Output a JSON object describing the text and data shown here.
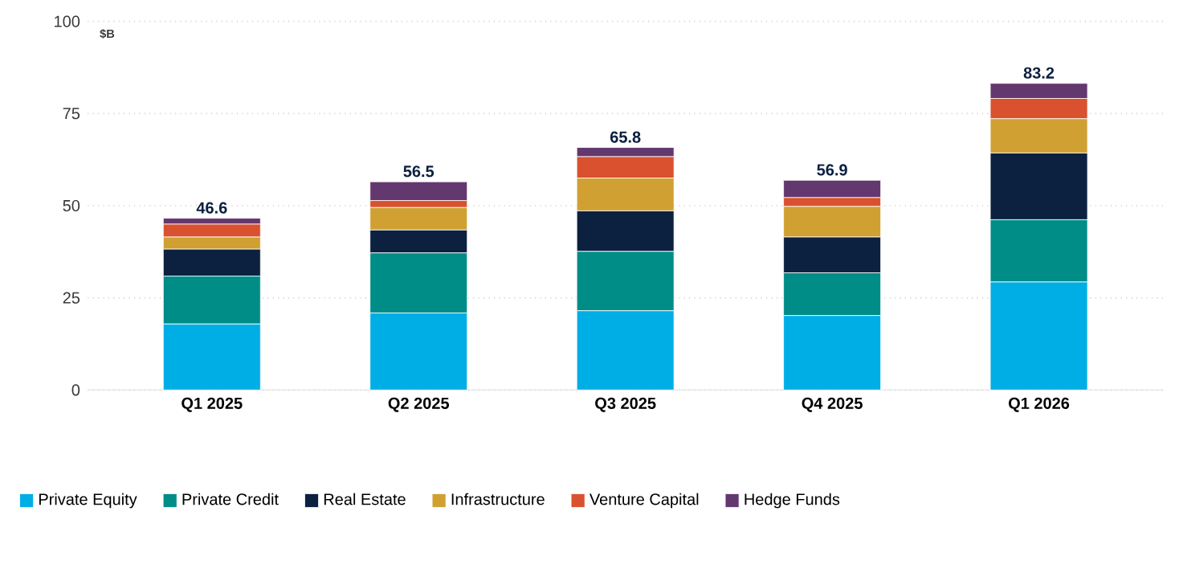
{
  "chart_data": {
    "type": "bar",
    "stacked": true,
    "ylabel": "$B",
    "categories": [
      "Q1 2025",
      "Q2 2025",
      "Q3 2025",
      "Q4 2025",
      "Q1 2026"
    ],
    "series": [
      {
        "name": "Private Equity",
        "color": "#00aee6",
        "values": [
          17.9,
          20.9,
          21.5,
          20.2,
          29.3
        ]
      },
      {
        "name": "Private Credit",
        "color": "#008c87",
        "values": [
          13.0,
          16.3,
          16.1,
          11.6,
          16.9
        ]
      },
      {
        "name": "Real Estate",
        "color": "#0c2040",
        "values": [
          7.3,
          6.2,
          11.0,
          9.7,
          18.1
        ]
      },
      {
        "name": "Infrastructure",
        "color": "#d0a032",
        "values": [
          3.3,
          6.1,
          8.9,
          8.3,
          9.3
        ]
      },
      {
        "name": "Venture Capital",
        "color": "#d9512f",
        "values": [
          3.5,
          1.9,
          5.8,
          2.4,
          5.5
        ]
      },
      {
        "name": "Hedge Funds",
        "color": "#63386e",
        "values": [
          1.6,
          5.1,
          2.5,
          4.7,
          4.1
        ]
      }
    ],
    "totals": [
      "46.6",
      "56.5",
      "65.8",
      "56.9",
      "83.2"
    ],
    "ylim": [
      0,
      100
    ],
    "yticks": [
      0,
      25,
      50,
      75,
      100
    ],
    "grid": "y",
    "legend": "bottom left"
  }
}
